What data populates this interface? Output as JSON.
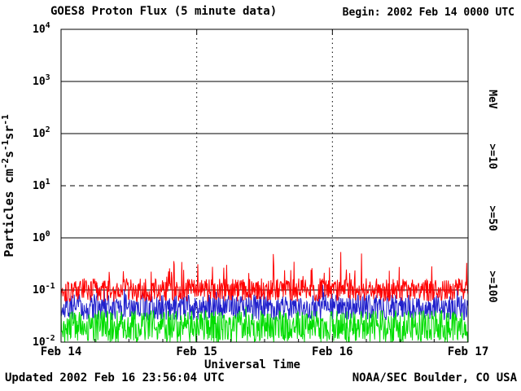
{
  "header": {
    "title": "GOES8 Proton Flux (5 minute data)",
    "begin_label": "Begin: 2002 Feb 14 0000 UTC"
  },
  "footer": {
    "updated": "Updated 2002 Feb 16 23:56:04 UTC",
    "source": "NOAA/SEC Boulder, CO USA"
  },
  "chart_data": {
    "type": "line",
    "title": "GOES8 Proton Flux (5 minute data)",
    "xlabel": "Universal Time",
    "ylabel": "Particles cm^-2 s^-1 sr^-1",
    "ylabel_parts": [
      {
        "t": "Particles cm",
        "sup": false
      },
      {
        "t": "-2",
        "sup": true
      },
      {
        "t": "s",
        "sup": false
      },
      {
        "t": "-1",
        "sup": true
      },
      {
        "t": "sr",
        "sup": false
      },
      {
        "t": "-1",
        "sup": true
      }
    ],
    "x_tick_labels": [
      "Feb 14",
      "Feb 15",
      "Feb 16",
      "Feb 17"
    ],
    "x_days": 3,
    "points_per_day": 288,
    "y_scale": "log",
    "ylim_log": [
      -2,
      4
    ],
    "y_tick_exponents": [
      4,
      3,
      2,
      1,
      0,
      -1,
      -2
    ],
    "grid": {
      "solid_exponents": [
        3,
        2,
        0,
        -1
      ],
      "dashed_exponents": [
        1
      ],
      "vertical_dotted_days": [
        1,
        2
      ]
    },
    "right_axis_label": "MeV",
    "legend_position": "right",
    "series": [
      {
        "name": ">=10",
        "color": "#ff0000",
        "typical_flux": 0.1,
        "base_exp": -1.0,
        "jitter": 0.45,
        "spike_prob": 0.07,
        "spike_max": 0.55,
        "seed": 101
      },
      {
        "name": ">=50",
        "color": "#2222cc",
        "typical_flux": 0.05,
        "base_exp": -1.33,
        "jitter": 0.5,
        "spike_prob": 0.04,
        "spike_max": 0.25,
        "seed": 202
      },
      {
        "name": ">=100",
        "color": "#00dd00",
        "typical_flux": 0.02,
        "base_exp": -1.7,
        "jitter": 0.62,
        "spike_prob": 0.02,
        "spike_max": 0.15,
        "seed": 303
      }
    ],
    "plot_order": [
      1,
      0,
      2
    ],
    "floor_exp": -2,
    "axis_color": "#000000",
    "background": "#ffffff"
  }
}
